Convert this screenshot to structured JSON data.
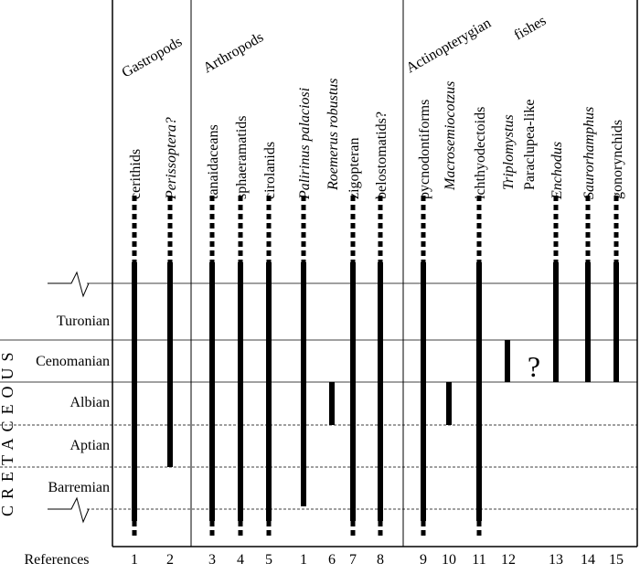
{
  "period_label": "CRETACEOUS",
  "stages": [
    "Turonian",
    "Cenomanian",
    "Albian",
    "Aptian",
    "Barremian"
  ],
  "groups": [
    {
      "label": "Gastropods"
    },
    {
      "label": "Arthropods"
    },
    {
      "label": "Actinopterygian"
    },
    {
      "label": "fishes"
    }
  ],
  "references_label": "References",
  "unknown_marker": "?",
  "taxa": [
    {
      "name": "cerithids",
      "italic": false,
      "ref": "1",
      "range_top": "above-Turonian",
      "range_bottom": "below-Barremian",
      "continues_up": true,
      "continues_down": true
    },
    {
      "name": "Perissoptera?",
      "italic": true,
      "ref": "2",
      "range_top": "above-Turonian",
      "range_bottom": "Aptian",
      "continues_up": true,
      "continues_down": false
    },
    {
      "name": "tanaidaceans",
      "italic": false,
      "ref": "3",
      "range_top": "above-Turonian",
      "range_bottom": "below-Barremian",
      "continues_up": true,
      "continues_down": true
    },
    {
      "name": "sphaeramatids",
      "italic": false,
      "ref": "4",
      "range_top": "above-Turonian",
      "range_bottom": "below-Barremian",
      "continues_up": true,
      "continues_down": true
    },
    {
      "name": "cirolanids",
      "italic": false,
      "ref": "5",
      "range_top": "above-Turonian",
      "range_bottom": "below-Barremian",
      "continues_up": true,
      "continues_down": true
    },
    {
      "name": "Palirinus palaciosi",
      "italic": true,
      "ref": "1",
      "range_top": "above-Turonian",
      "range_bottom": "Barremian",
      "continues_up": true,
      "continues_down": false
    },
    {
      "name": "Roemerus robustus",
      "italic": true,
      "ref": "6",
      "range_top": "Albian",
      "range_bottom": "Albian",
      "continues_up": false,
      "continues_down": false
    },
    {
      "name": "zigopteran",
      "italic": false,
      "ref": "7",
      "range_top": "above-Turonian",
      "range_bottom": "below-Barremian",
      "continues_up": true,
      "continues_down": true
    },
    {
      "name": "belostomatids?",
      "italic": false,
      "ref": "8",
      "range_top": "above-Turonian",
      "range_bottom": "below-Barremian",
      "continues_up": true,
      "continues_down": true
    },
    {
      "name": "pycnodontiforms",
      "italic": false,
      "ref": "9",
      "range_top": "above-Turonian",
      "range_bottom": "below-Barremian",
      "continues_up": true,
      "continues_down": true
    },
    {
      "name": "Macrosemiocotzus",
      "italic": true,
      "ref": "10",
      "range_top": "Albian",
      "range_bottom": "Albian",
      "continues_up": false,
      "continues_down": false
    },
    {
      "name": "ichthyodectoids",
      "italic": false,
      "ref": "11",
      "range_top": "above-Turonian",
      "range_bottom": "below-Barremian",
      "continues_up": true,
      "continues_down": true
    },
    {
      "name": "Triplomystus",
      "italic": true,
      "ref": "12",
      "range_top": "Cenomanian",
      "range_bottom": "Cenomanian",
      "continues_up": false,
      "continues_down": false
    },
    {
      "name": "Paraclupea-like",
      "italic": false,
      "ref": "",
      "range_top": "unknown",
      "range_bottom": "unknown",
      "continues_up": false,
      "continues_down": false
    },
    {
      "name": "Enchodus",
      "italic": true,
      "ref": "13",
      "range_top": "above-Turonian",
      "range_bottom": "Cenomanian",
      "continues_up": true,
      "continues_down": false
    },
    {
      "name": "Saurorhamphus",
      "italic": true,
      "ref": "14",
      "range_top": "above-Turonian",
      "range_bottom": "Cenomanian",
      "continues_up": true,
      "continues_down": false
    },
    {
      "name": "gonorynchids",
      "italic": false,
      "ref": "15",
      "range_top": "above-Turonian",
      "range_bottom": "Cenomanian",
      "continues_up": true,
      "continues_down": false
    }
  ]
}
